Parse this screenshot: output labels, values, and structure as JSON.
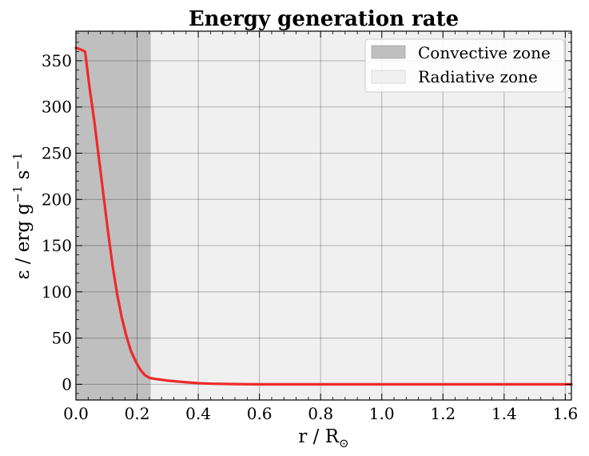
{
  "chart_data": {
    "type": "line",
    "title": "Energy generation rate",
    "xlabel": "r / R",
    "xlabel_sub": "⊙",
    "ylabel": "ε / erg g",
    "ylabel_sup1": "−1",
    "ylabel_mid": " s",
    "ylabel_sup2": "−1",
    "xlim": [
      0,
      1.62
    ],
    "ylim": [
      -17,
      382
    ],
    "xticks": [
      0.0,
      0.2,
      0.4,
      0.6,
      0.8,
      1.0,
      1.2,
      1.4,
      1.6
    ],
    "xtick_labels": [
      "0.0",
      "0.2",
      "0.4",
      "0.6",
      "0.8",
      "1.0",
      "1.2",
      "1.4",
      "1.6"
    ],
    "yticks": [
      0,
      50,
      100,
      150,
      200,
      250,
      300,
      350
    ],
    "ytick_labels": [
      "0",
      "50",
      "100",
      "150",
      "200",
      "250",
      "300",
      "350"
    ],
    "grid": true,
    "legend_position": "top-right",
    "regions": [
      {
        "name": "Convective zone",
        "x_start": 0.0,
        "x_end": 0.245,
        "color": "#bfbfbf"
      },
      {
        "name": "Radiative zone",
        "x_start": 0.245,
        "x_end": 1.62,
        "color": "#f0f0f0"
      }
    ],
    "series": [
      {
        "color": "#ee2a2a",
        "x": [
          0.0,
          0.01,
          0.03,
          0.045,
          0.06,
          0.075,
          0.09,
          0.105,
          0.12,
          0.135,
          0.15,
          0.165,
          0.18,
          0.195,
          0.21,
          0.225,
          0.24,
          0.255,
          0.3,
          0.35,
          0.4,
          0.45,
          0.5,
          0.55,
          0.6,
          0.7,
          0.8,
          1.0,
          1.2,
          1.4,
          1.62
        ],
        "y": [
          364,
          363,
          360,
          320,
          285,
          245,
          205,
          165,
          128,
          97,
          72,
          52,
          36,
          25,
          16,
          10,
          7,
          6,
          4,
          2.5,
          1.2,
          0.6,
          0.3,
          0.1,
          0,
          0,
          0,
          0,
          0,
          0,
          0
        ]
      }
    ]
  }
}
